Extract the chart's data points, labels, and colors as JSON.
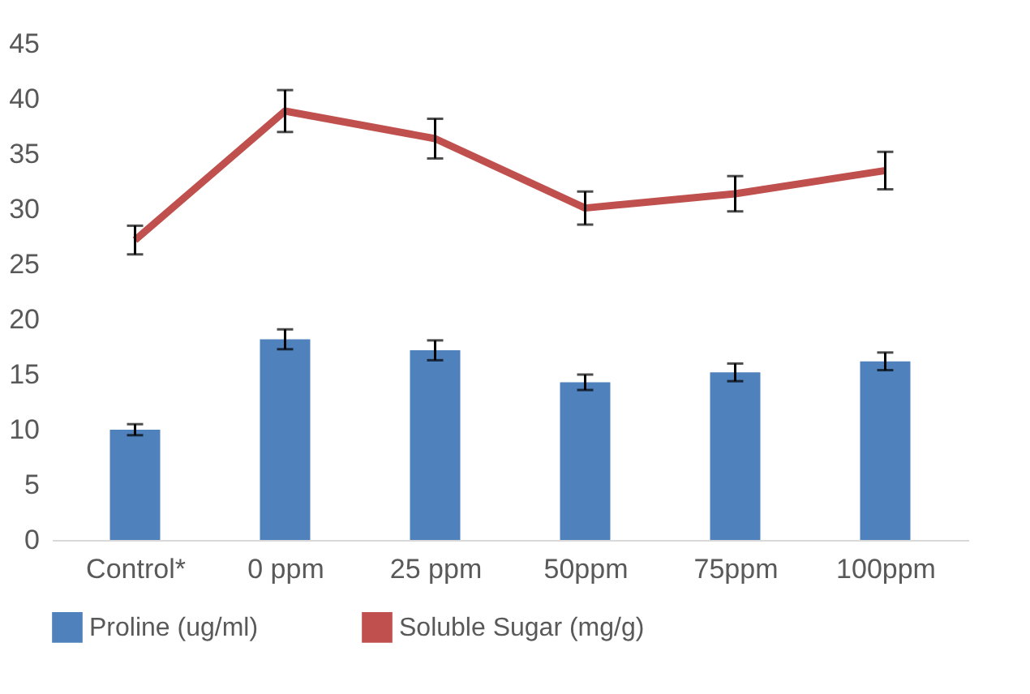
{
  "chart_data": {
    "type": "bar",
    "categories": [
      "Control*",
      "0 ppm",
      "25 ppm",
      "50ppm",
      "75ppm",
      "100ppm"
    ],
    "series": [
      {
        "name": "Proline (ug/ml)",
        "color": "#4f81bd",
        "values": [
          10.0,
          18.2,
          17.2,
          14.3,
          15.2,
          16.2
        ],
        "errors": [
          0.5,
          0.9,
          0.9,
          0.7,
          0.8,
          0.8
        ]
      },
      {
        "name": "Soluble Sugar (mg/g)",
        "type": "line",
        "color": "#c0504d",
        "values": [
          27.2,
          38.9,
          36.4,
          30.1,
          31.4,
          33.5
        ],
        "errors": [
          1.3,
          1.9,
          1.8,
          1.5,
          1.6,
          1.7
        ]
      }
    ],
    "ylim": [
      0,
      45
    ],
    "yticks": [
      0,
      5,
      10,
      15,
      20,
      25,
      30,
      35,
      40,
      45
    ],
    "grid": false,
    "legend": "bottom",
    "marker": "none",
    "line_style": "solid"
  }
}
